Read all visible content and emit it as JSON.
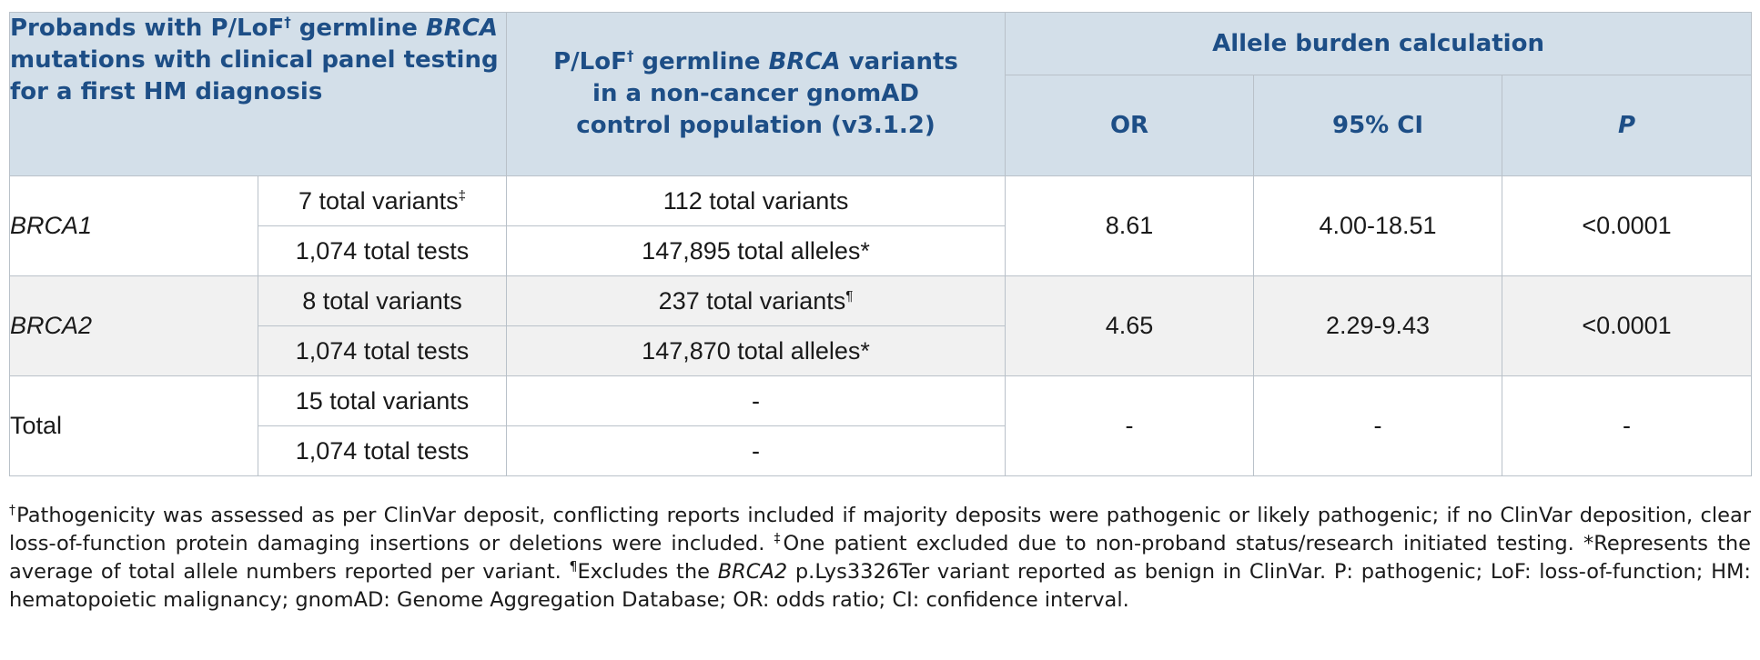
{
  "header": {
    "col1_a": "Probands with P/LoF",
    "col1_sup": "†",
    "col1_b": " germline ",
    "col1_gene": "BRCA",
    "col1_c": " mutations with clinical panel testing for a first HM diagnosis",
    "col2_a": "P/LoF",
    "col2_sup": "†",
    "col2_b": " germline ",
    "col2_gene": "BRCA",
    "col2_c": " variants in a non-cancer gnomAD control population (v3.1.2)",
    "group": "Allele burden calculation",
    "or": "OR",
    "ci": "95% CI",
    "p": "P"
  },
  "rows": [
    {
      "gene": "BRCA1",
      "proband_variants": "7 total variants",
      "proband_variants_sup": "‡",
      "proband_tests": "1,074 total tests",
      "control_variants": "112 total variants",
      "control_variants_sup": "",
      "control_alleles": "147,895 total alleles*",
      "or": "8.61",
      "ci": "4.00-18.51",
      "p": "<0.0001"
    },
    {
      "gene": "BRCA2",
      "proband_variants": "8 total variants",
      "proband_variants_sup": "",
      "proband_tests": "1,074 total tests",
      "control_variants": "237 total variants",
      "control_variants_sup": "¶",
      "control_alleles": "147,870 total alleles*",
      "or": "4.65",
      "ci": "2.29-9.43",
      "p": "<0.0001"
    },
    {
      "gene": "Total",
      "proband_variants": "15 total variants",
      "proband_variants_sup": "",
      "proband_tests": "1,074 total tests",
      "control_variants": "-",
      "control_variants_sup": "",
      "control_alleles": "-",
      "or": "-",
      "ci": "-",
      "p": "-"
    }
  ],
  "footnote": {
    "s1": "†",
    "t1": "Pathogenicity was assessed as per ClinVar deposit, conflicting reports included if majority deposits were pathogenic or likely pathogenic; if no ClinVar deposition, clear loss-of-function protein damaging insertions or deletions were included. ",
    "s2": "‡",
    "t2": "One patient excluded due to non-proband status/research initiated testing. *Represents the average of total allele numbers reported per variant. ",
    "s3": "¶",
    "t3": "Excludes the ",
    "gene": "BRCA2",
    "t4": " p.Lys3326Ter variant reported as benign in ClinVar. P: pathogenic; LoF: loss-of-function; HM: hematopoietic malignancy; gnomAD: Genome Aggregation Database; OR: odds ratio; CI: confidence interval."
  }
}
